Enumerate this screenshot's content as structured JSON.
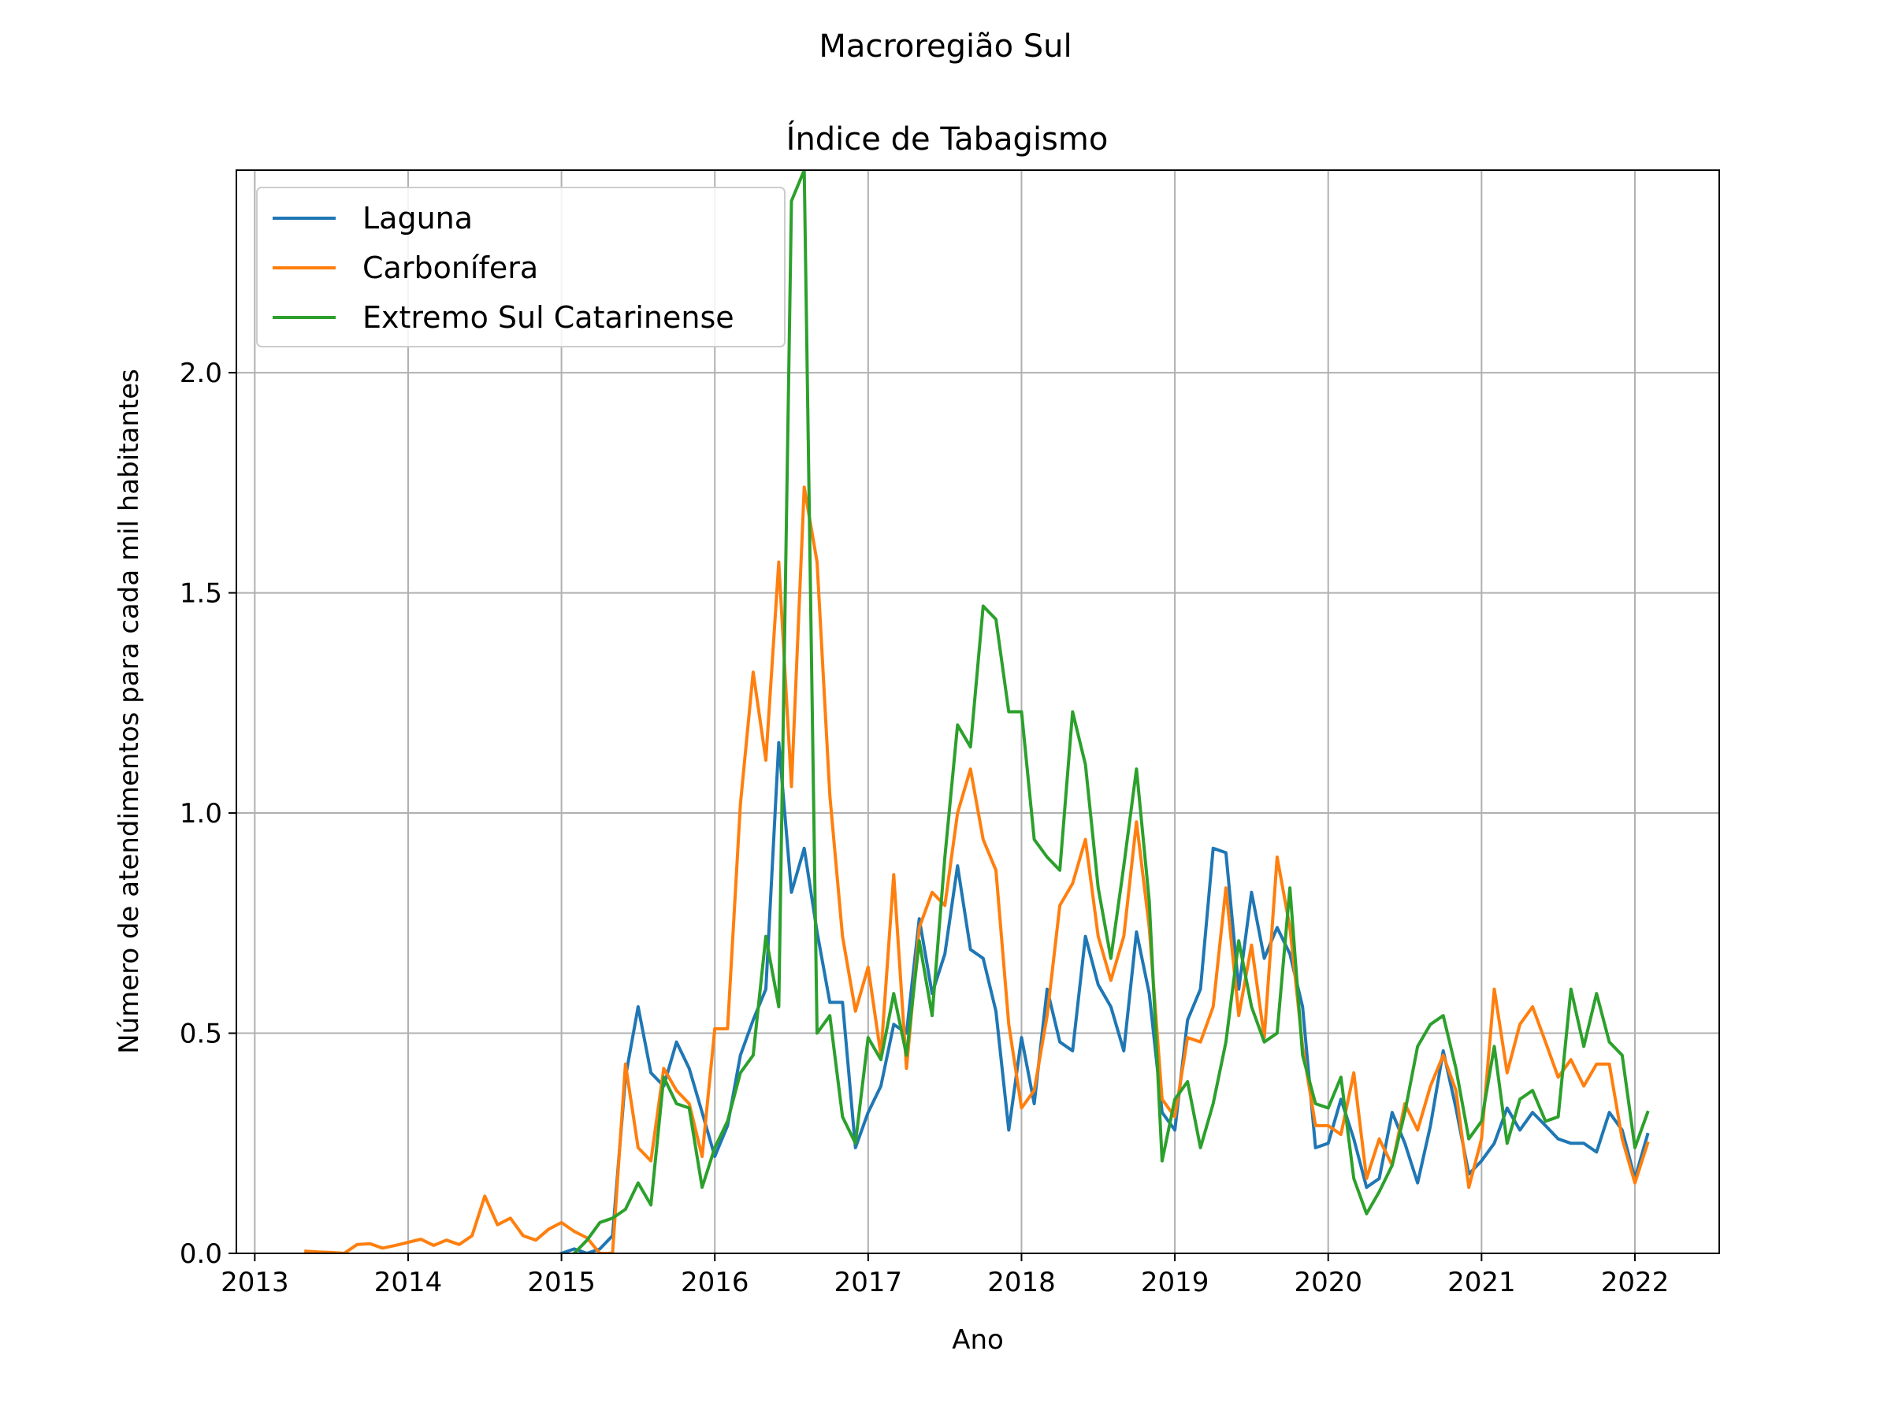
{
  "figure": {
    "suptitle": "Macroregião Sul"
  },
  "chart_data": {
    "type": "line",
    "title": "Índice de Tabagismo",
    "xlabel": "Ano",
    "ylabel": "Número de atendimentos para cada mil habitantes",
    "xlim": [
      2012.88,
      2022.55
    ],
    "ylim": [
      0.0,
      2.46
    ],
    "x_ticks": [
      "2013",
      "2014",
      "2015",
      "2016",
      "2017",
      "2018",
      "2019",
      "2020",
      "2021",
      "2022"
    ],
    "y_ticks": [
      "0.0",
      "0.5",
      "1.0",
      "1.5",
      "2.0"
    ],
    "grid": true,
    "legend_position": "top-left",
    "colors": {
      "Laguna": "#1f77b4",
      "Carbonífera": "#ff7f0e",
      "Extremo Sul Catarinense": "#2ca02c"
    },
    "series": [
      {
        "name": "Laguna",
        "x": [
          2015.0,
          2015.083,
          2015.167,
          2015.25,
          2015.333,
          2015.417,
          2015.5,
          2015.583,
          2015.667,
          2015.75,
          2015.833,
          2015.917,
          2016.0,
          2016.083,
          2016.167,
          2016.25,
          2016.333,
          2016.417,
          2016.5,
          2016.583,
          2016.667,
          2016.75,
          2016.833,
          2016.917,
          2017.0,
          2017.083,
          2017.167,
          2017.25,
          2017.333,
          2017.417,
          2017.5,
          2017.583,
          2017.667,
          2017.75,
          2017.833,
          2017.917,
          2018.0,
          2018.083,
          2018.167,
          2018.25,
          2018.333,
          2018.417,
          2018.5,
          2018.583,
          2018.667,
          2018.75,
          2018.833,
          2018.917,
          2019.0,
          2019.083,
          2019.167,
          2019.25,
          2019.333,
          2019.417,
          2019.5,
          2019.583,
          2019.667,
          2019.75,
          2019.833,
          2019.917,
          2020.0,
          2020.083,
          2020.167,
          2020.25,
          2020.333,
          2020.417,
          2020.5,
          2020.583,
          2020.667,
          2020.75,
          2020.833,
          2020.917,
          2021.0,
          2021.083,
          2021.167,
          2021.25,
          2021.333,
          2021.417,
          2021.5,
          2021.583,
          2021.667,
          2021.75,
          2021.833,
          2021.917,
          2022.0,
          2022.083
        ],
        "y": [
          0.0,
          0.01,
          0.0,
          0.01,
          0.04,
          0.4,
          0.56,
          0.41,
          0.38,
          0.48,
          0.42,
          0.32,
          0.22,
          0.29,
          0.45,
          0.53,
          0.6,
          1.16,
          0.82,
          0.92,
          0.73,
          0.57,
          0.57,
          0.24,
          0.32,
          0.38,
          0.52,
          0.5,
          0.76,
          0.59,
          0.68,
          0.88,
          0.69,
          0.67,
          0.55,
          0.28,
          0.49,
          0.34,
          0.6,
          0.48,
          0.46,
          0.72,
          0.61,
          0.56,
          0.46,
          0.73,
          0.59,
          0.32,
          0.28,
          0.53,
          0.6,
          0.92,
          0.91,
          0.6,
          0.82,
          0.67,
          0.74,
          0.68,
          0.56,
          0.24,
          0.25,
          0.35,
          0.26,
          0.15,
          0.17,
          0.32,
          0.25,
          0.16,
          0.29,
          0.46,
          0.33,
          0.18,
          0.21,
          0.25,
          0.33,
          0.28,
          0.32,
          0.29,
          0.26,
          0.25,
          0.25,
          0.23,
          0.32,
          0.28,
          0.17,
          0.27
        ]
      },
      {
        "name": "Carbonífera",
        "x": [
          2013.333,
          2013.417,
          2013.5,
          2013.583,
          2013.667,
          2013.75,
          2013.833,
          2013.917,
          2014.0,
          2014.083,
          2014.167,
          2014.25,
          2014.333,
          2014.417,
          2014.5,
          2014.583,
          2014.667,
          2014.75,
          2014.833,
          2014.917,
          2015.0,
          2015.083,
          2015.167,
          2015.25,
          2015.333,
          2015.417,
          2015.5,
          2015.583,
          2015.667,
          2015.75,
          2015.833,
          2015.917,
          2016.0,
          2016.083,
          2016.167,
          2016.25,
          2016.333,
          2016.417,
          2016.5,
          2016.583,
          2016.667,
          2016.75,
          2016.833,
          2016.917,
          2017.0,
          2017.083,
          2017.167,
          2017.25,
          2017.333,
          2017.417,
          2017.5,
          2017.583,
          2017.667,
          2017.75,
          2017.833,
          2017.917,
          2018.0,
          2018.083,
          2018.167,
          2018.25,
          2018.333,
          2018.417,
          2018.5,
          2018.583,
          2018.667,
          2018.75,
          2018.833,
          2018.917,
          2019.0,
          2019.083,
          2019.167,
          2019.25,
          2019.333,
          2019.417,
          2019.5,
          2019.583,
          2019.667,
          2019.75,
          2019.833,
          2019.917,
          2020.0,
          2020.083,
          2020.167,
          2020.25,
          2020.333,
          2020.417,
          2020.5,
          2020.583,
          2020.667,
          2020.75,
          2020.833,
          2020.917,
          2021.0,
          2021.083,
          2021.167,
          2021.25,
          2021.333,
          2021.417,
          2021.5,
          2021.583,
          2021.667,
          2021.75,
          2021.833,
          2021.917,
          2022.0,
          2022.083
        ],
        "y": [
          0.005,
          0.003,
          0.002,
          0.0,
          0.02,
          0.022,
          0.012,
          0.018,
          0.025,
          0.032,
          0.018,
          0.03,
          0.02,
          0.04,
          0.13,
          0.065,
          0.08,
          0.04,
          0.03,
          0.055,
          0.07,
          0.05,
          0.035,
          0.0,
          0.0,
          0.43,
          0.24,
          0.21,
          0.42,
          0.37,
          0.34,
          0.22,
          0.51,
          0.51,
          1.02,
          1.32,
          1.12,
          1.57,
          1.06,
          1.74,
          1.57,
          1.04,
          0.72,
          0.55,
          0.65,
          0.45,
          0.86,
          0.42,
          0.74,
          0.82,
          0.79,
          1.0,
          1.1,
          0.94,
          0.87,
          0.52,
          0.33,
          0.37,
          0.54,
          0.79,
          0.84,
          0.94,
          0.72,
          0.62,
          0.72,
          0.98,
          0.74,
          0.35,
          0.31,
          0.49,
          0.48,
          0.56,
          0.83,
          0.54,
          0.7,
          0.49,
          0.9,
          0.74,
          0.47,
          0.29,
          0.29,
          0.27,
          0.41,
          0.17,
          0.26,
          0.2,
          0.34,
          0.28,
          0.38,
          0.45,
          0.37,
          0.15,
          0.26,
          0.6,
          0.41,
          0.52,
          0.56,
          0.48,
          0.4,
          0.44,
          0.38,
          0.43,
          0.43,
          0.26,
          0.16,
          0.25
        ]
      },
      {
        "name": "Extremo Sul Catarinense",
        "x": [
          2015.083,
          2015.167,
          2015.25,
          2015.333,
          2015.417,
          2015.5,
          2015.583,
          2015.667,
          2015.75,
          2015.833,
          2015.917,
          2016.0,
          2016.083,
          2016.167,
          2016.25,
          2016.333,
          2016.417,
          2016.5,
          2016.583,
          2016.667,
          2016.75,
          2016.833,
          2016.917,
          2017.0,
          2017.083,
          2017.167,
          2017.25,
          2017.333,
          2017.417,
          2017.5,
          2017.583,
          2017.667,
          2017.75,
          2017.833,
          2017.917,
          2018.0,
          2018.083,
          2018.167,
          2018.25,
          2018.333,
          2018.417,
          2018.5,
          2018.583,
          2018.667,
          2018.75,
          2018.833,
          2018.917,
          2019.0,
          2019.083,
          2019.167,
          2019.25,
          2019.333,
          2019.417,
          2019.5,
          2019.583,
          2019.667,
          2019.75,
          2019.833,
          2019.917,
          2020.0,
          2020.083,
          2020.167,
          2020.25,
          2020.333,
          2020.417,
          2020.5,
          2020.583,
          2020.667,
          2020.75,
          2020.833,
          2020.917,
          2021.0,
          2021.083,
          2021.167,
          2021.25,
          2021.333,
          2021.417,
          2021.5,
          2021.583,
          2021.667,
          2021.75,
          2021.833,
          2021.917,
          2022.0,
          2022.083
        ],
        "y": [
          0.0,
          0.03,
          0.07,
          0.08,
          0.1,
          0.16,
          0.11,
          0.4,
          0.34,
          0.33,
          0.15,
          0.24,
          0.3,
          0.41,
          0.45,
          0.72,
          0.56,
          2.39,
          2.46,
          0.5,
          0.54,
          0.31,
          0.25,
          0.49,
          0.44,
          0.59,
          0.45,
          0.71,
          0.54,
          0.9,
          1.2,
          1.15,
          1.47,
          1.44,
          1.23,
          1.23,
          0.94,
          0.9,
          0.87,
          1.23,
          1.11,
          0.83,
          0.67,
          0.88,
          1.1,
          0.8,
          0.21,
          0.35,
          0.39,
          0.24,
          0.34,
          0.48,
          0.71,
          0.56,
          0.48,
          0.5,
          0.83,
          0.45,
          0.34,
          0.33,
          0.4,
          0.17,
          0.09,
          0.14,
          0.2,
          0.32,
          0.47,
          0.52,
          0.54,
          0.42,
          0.26,
          0.3,
          0.47,
          0.25,
          0.35,
          0.37,
          0.3,
          0.31,
          0.6,
          0.47,
          0.59,
          0.48,
          0.45,
          0.24,
          0.32
        ]
      }
    ]
  }
}
